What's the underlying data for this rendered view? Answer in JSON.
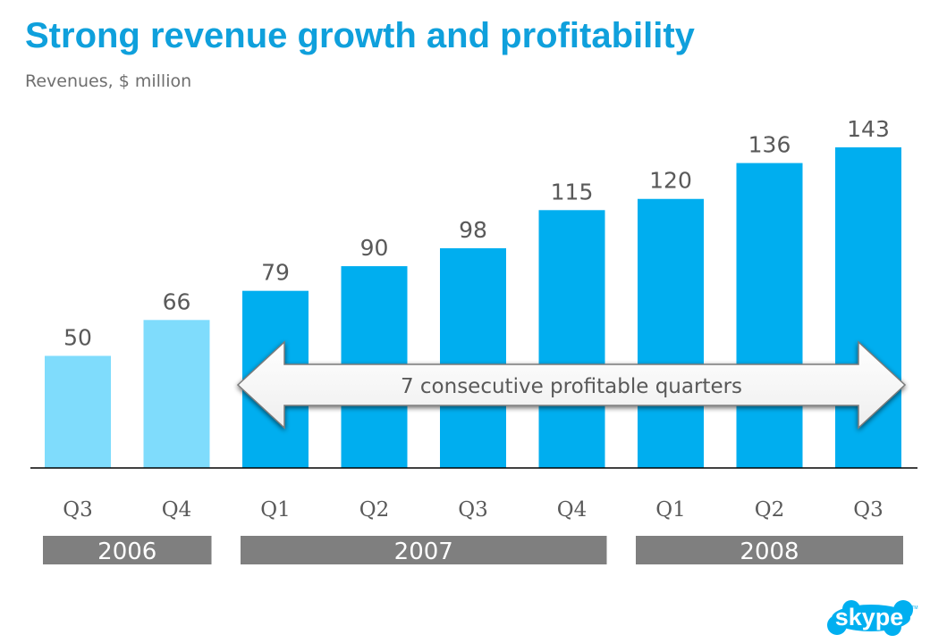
{
  "title": "Strong revenue growth and profitability",
  "subtitle": "Revenues, $ million",
  "chart_data": {
    "type": "bar",
    "title": "Strong revenue growth and profitability",
    "ylabel": "Revenues, $ million",
    "xlabel": "",
    "categories": [
      "Q3",
      "Q4",
      "Q1",
      "Q2",
      "Q3",
      "Q4",
      "Q1",
      "Q2",
      "Q3"
    ],
    "values": [
      50,
      66,
      79,
      90,
      98,
      115,
      120,
      136,
      143
    ],
    "years": [
      {
        "label": "2006",
        "first": 0,
        "last": 1
      },
      {
        "label": "2007",
        "first": 2,
        "last": 5
      },
      {
        "label": "2008",
        "first": 6,
        "last": 8
      }
    ],
    "annotation": {
      "text": "7 consecutive profitable quarters",
      "first": 2,
      "last": 8
    },
    "ylim": [
      0,
      143
    ],
    "grid": false,
    "colors": {
      "highlight": "#00aeef",
      "muted": "#7fdcfc",
      "year_band": "#7f7f7f",
      "label": "#595959"
    },
    "highlight_from_index": 2
  },
  "logo": {
    "text": "skype",
    "tm": "TM",
    "color": "#00aff0"
  }
}
